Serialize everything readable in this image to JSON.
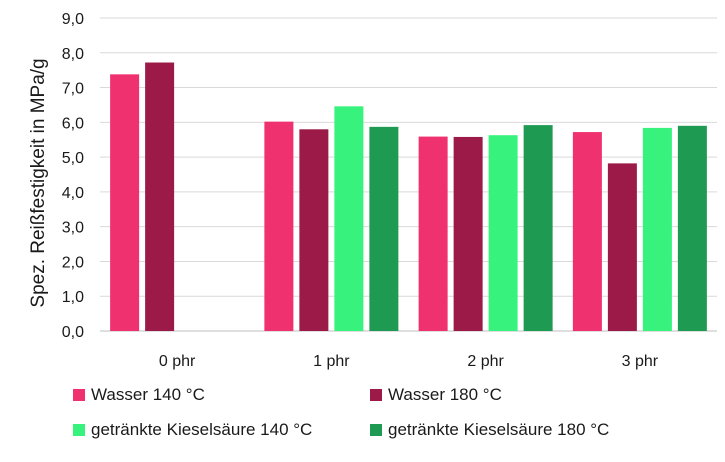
{
  "chart_data": {
    "type": "bar",
    "categories": [
      "0 phr",
      "1 phr",
      "2 phr",
      "3 phr"
    ],
    "series": [
      {
        "name": "Wasser 140 °C",
        "color": "#f0316f",
        "values": [
          7.38,
          6.02,
          5.59,
          5.72
        ]
      },
      {
        "name": "Wasser 180 °C",
        "color": "#9b1a47",
        "values": [
          7.72,
          5.8,
          5.58,
          4.82
        ]
      },
      {
        "name": "getränkte Kieselsäure 140 °C",
        "color": "#37f27d",
        "values": [
          null,
          6.46,
          5.63,
          5.84
        ]
      },
      {
        "name": "getränkte Kieselsäure 180 °C",
        "color": "#1f9a53",
        "values": [
          null,
          5.87,
          5.92,
          5.9
        ]
      }
    ],
    "ylabel": "Spez. Reißfestigkeit in MPa/g",
    "xlabel": "",
    "ylim": [
      0,
      9
    ],
    "yticks": [
      "0,0",
      "1,0",
      "2,0",
      "3,0",
      "4,0",
      "5,0",
      "6,0",
      "7,0",
      "8,0",
      "9,0"
    ],
    "grid": true,
    "gridColor": "#d9d9d9",
    "legend_position": "bottom"
  }
}
